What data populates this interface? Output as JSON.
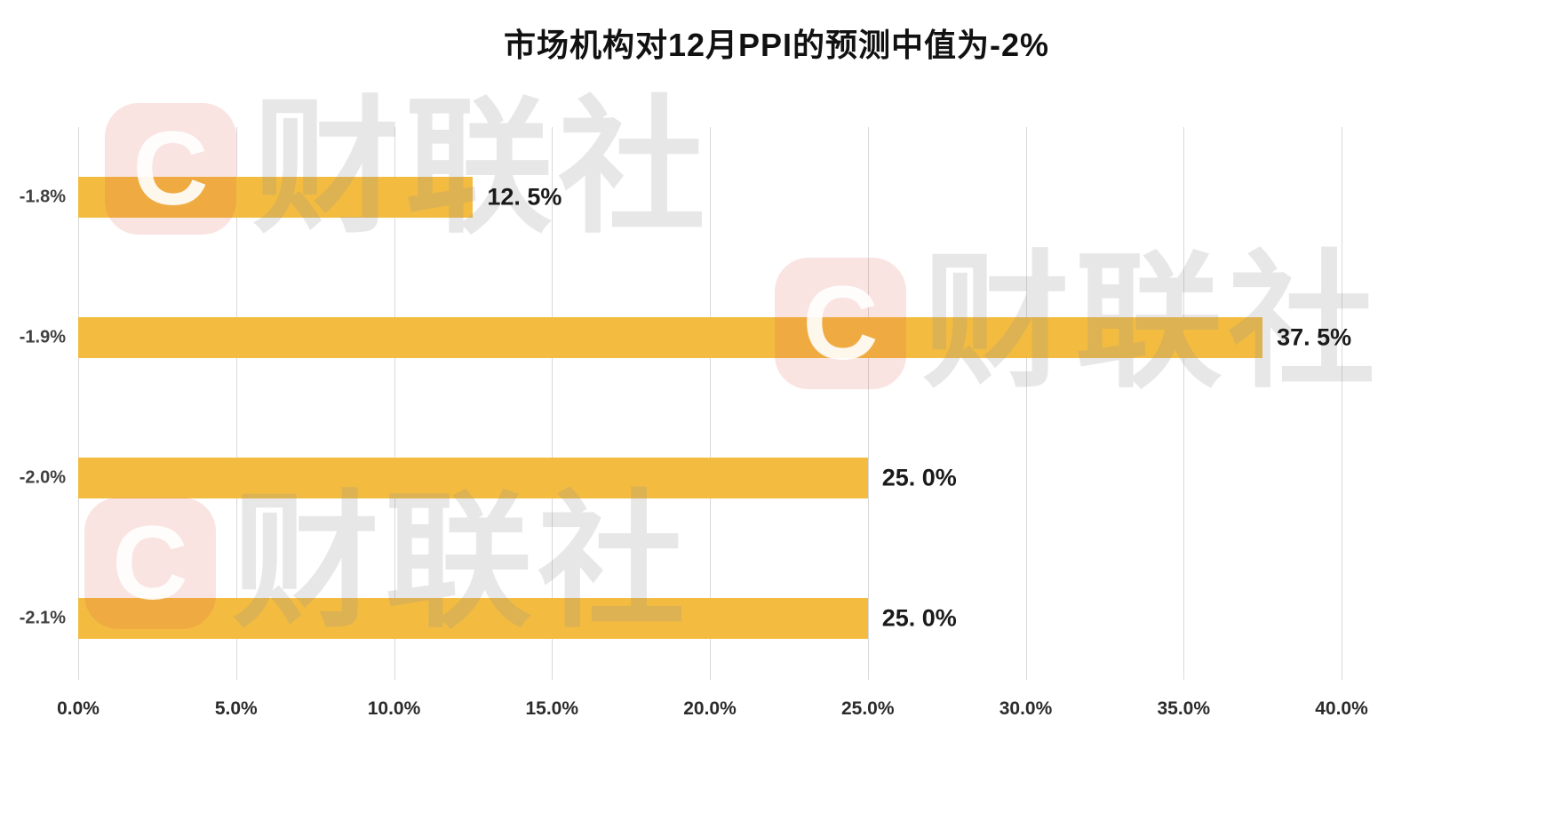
{
  "title": "市场机构对12月PPI的预测中值为-2%",
  "watermark": {
    "logo_text": "C",
    "brand_text": "财联社"
  },
  "chart_data": {
    "type": "bar",
    "orientation": "horizontal",
    "title": "市场机构对12月PPI的预测中值为-2%",
    "categories": [
      "-1.8%",
      "-1.9%",
      "-2.0%",
      "-2.1%"
    ],
    "values": [
      12.5,
      37.5,
      25.0,
      25.0
    ],
    "value_labels": [
      "12. 5%",
      "37. 5%",
      "25. 0%",
      "25. 0%"
    ],
    "x_ticks": [
      "0.0%",
      "5.0%",
      "10.0%",
      "15.0%",
      "20.0%",
      "25.0%",
      "30.0%",
      "35.0%",
      "40.0%"
    ],
    "x_tick_values": [
      0,
      5,
      10,
      15,
      20,
      25,
      30,
      35,
      40
    ],
    "xlim": [
      0,
      40
    ],
    "grid": true,
    "legend": false,
    "bar_color": "#F3BC41",
    "grid_color": "#d9d9d9"
  }
}
